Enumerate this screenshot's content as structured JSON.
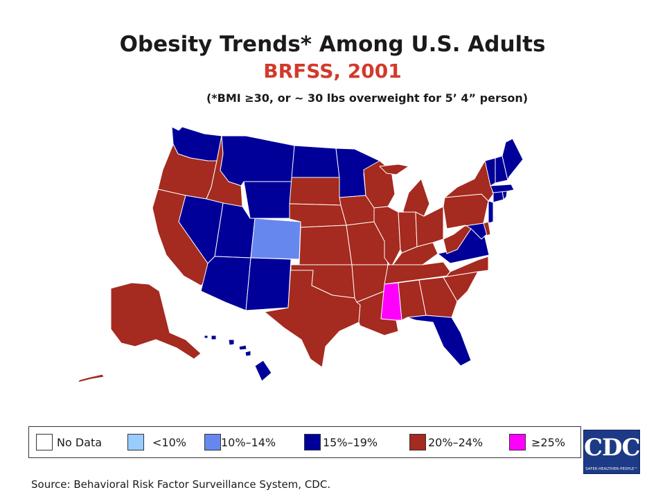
{
  "header": {
    "title": "Obesity Trends* Among U.S. Adults",
    "subtitle": "BRFSS, 2001",
    "footnote": "(*BMI ≥30, or ~ 30 lbs overweight for 5’ 4” person)"
  },
  "colors": {
    "no_data": "#ffffff",
    "lt10": "#99ccff",
    "p10_14": "#6688ee",
    "p15_19": "#000099",
    "p20_24": "#a52a1f",
    "ge25": "#ff00ff",
    "border": "#ffffff"
  },
  "legend": [
    {
      "label": "No Data",
      "category": "no_data"
    },
    {
      "label": "<10%",
      "category": "lt10"
    },
    {
      "label": "10%–14%",
      "category": "p10_14"
    },
    {
      "label": "15%–19%",
      "category": "p15_19"
    },
    {
      "label": "20%–24%",
      "category": "p20_24"
    },
    {
      "label": "≥25%",
      "category": "ge25"
    }
  ],
  "states": [
    {
      "name": "WA",
      "category": "p15_19"
    },
    {
      "name": "OR",
      "category": "p20_24"
    },
    {
      "name": "CA",
      "category": "p20_24"
    },
    {
      "name": "ID",
      "category": "p20_24"
    },
    {
      "name": "NV",
      "category": "p15_19"
    },
    {
      "name": "MT",
      "category": "p15_19"
    },
    {
      "name": "WY",
      "category": "p15_19"
    },
    {
      "name": "UT",
      "category": "p15_19"
    },
    {
      "name": "AZ",
      "category": "p15_19"
    },
    {
      "name": "CO",
      "category": "p10_14"
    },
    {
      "name": "NM",
      "category": "p15_19"
    },
    {
      "name": "ND",
      "category": "p15_19"
    },
    {
      "name": "SD",
      "category": "p20_24"
    },
    {
      "name": "NE",
      "category": "p20_24"
    },
    {
      "name": "KS",
      "category": "p20_24"
    },
    {
      "name": "OK",
      "category": "p20_24"
    },
    {
      "name": "TX",
      "category": "p20_24"
    },
    {
      "name": "MN",
      "category": "p15_19"
    },
    {
      "name": "IA",
      "category": "p20_24"
    },
    {
      "name": "MO",
      "category": "p20_24"
    },
    {
      "name": "AR",
      "category": "p20_24"
    },
    {
      "name": "LA",
      "category": "p20_24"
    },
    {
      "name": "WI",
      "category": "p20_24"
    },
    {
      "name": "IL",
      "category": "p20_24"
    },
    {
      "name": "MI",
      "category": "p20_24"
    },
    {
      "name": "IN",
      "category": "p20_24"
    },
    {
      "name": "OH",
      "category": "p20_24"
    },
    {
      "name": "KY",
      "category": "p20_24"
    },
    {
      "name": "TN",
      "category": "p20_24"
    },
    {
      "name": "MS",
      "category": "ge25"
    },
    {
      "name": "AL",
      "category": "p20_24"
    },
    {
      "name": "GA",
      "category": "p20_24"
    },
    {
      "name": "FL",
      "category": "p15_19"
    },
    {
      "name": "SC",
      "category": "p20_24"
    },
    {
      "name": "NC",
      "category": "p20_24"
    },
    {
      "name": "VA",
      "category": "p15_19"
    },
    {
      "name": "WV",
      "category": "p20_24"
    },
    {
      "name": "PA",
      "category": "p20_24"
    },
    {
      "name": "NY",
      "category": "p20_24"
    },
    {
      "name": "MD",
      "category": "p15_19"
    },
    {
      "name": "DE",
      "category": "p20_24"
    },
    {
      "name": "NJ",
      "category": "p15_19"
    },
    {
      "name": "CT",
      "category": "p15_19"
    },
    {
      "name": "RI",
      "category": "p15_19"
    },
    {
      "name": "MA",
      "category": "p15_19"
    },
    {
      "name": "VT",
      "category": "p15_19"
    },
    {
      "name": "NH",
      "category": "p15_19"
    },
    {
      "name": "ME",
      "category": "p15_19"
    },
    {
      "name": "AK",
      "category": "p20_24"
    },
    {
      "name": "HI",
      "category": "p15_19"
    }
  ],
  "source": "Source: Behavioral Risk Factor Surveillance System, CDC.",
  "logo": {
    "text": "CDC",
    "tagline": "SAFER·HEALTHIER·PEOPLE™"
  }
}
